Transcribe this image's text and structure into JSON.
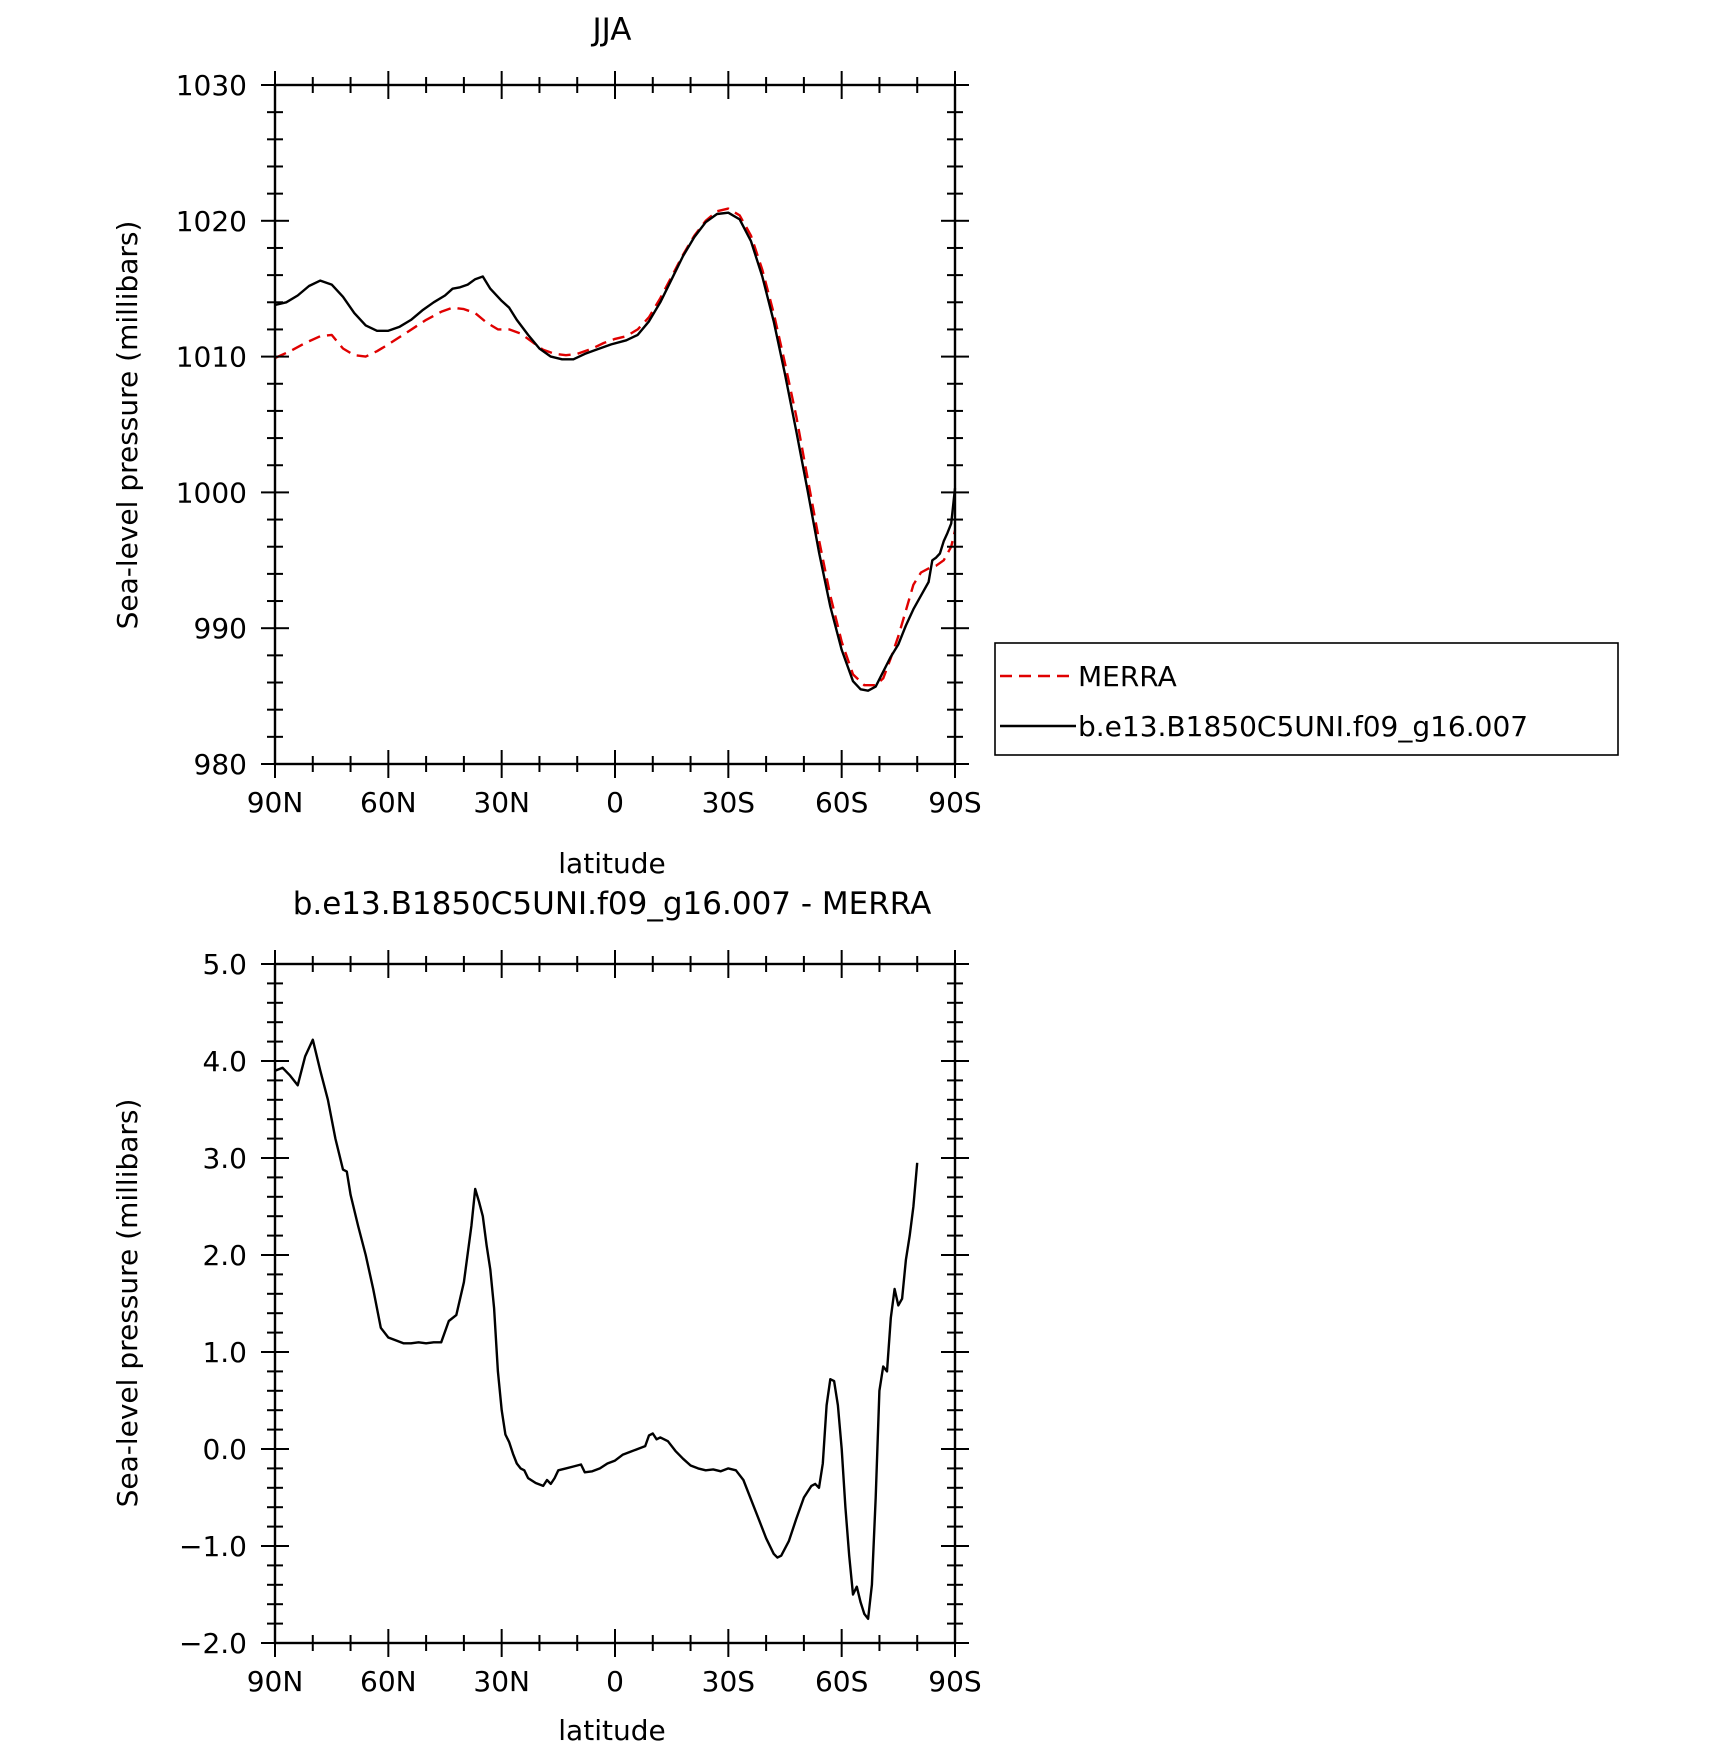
{
  "chart_data": [
    {
      "type": "line",
      "title": "JJA",
      "xlabel": "latitude",
      "ylabel": "Sea-level pressure (millibars)",
      "xlim": [
        90,
        -90
      ],
      "ylim": [
        980,
        1030
      ],
      "x_ticks": [
        {
          "value": 90,
          "label": "90N"
        },
        {
          "value": 60,
          "label": "60N"
        },
        {
          "value": 30,
          "label": "30N"
        },
        {
          "value": 0,
          "label": "0"
        },
        {
          "value": -30,
          "label": "30S"
        },
        {
          "value": -60,
          "label": "60S"
        },
        {
          "value": -90,
          "label": "90S"
        }
      ],
      "y_ticks": [
        {
          "value": 1030,
          "label": "1030"
        },
        {
          "value": 1020,
          "label": "1020"
        },
        {
          "value": 1010,
          "label": "1010"
        },
        {
          "value": 1000,
          "label": "1000"
        },
        {
          "value": 990,
          "label": "990"
        },
        {
          "value": 980,
          "label": "980"
        }
      ],
      "legend": {
        "placement": "right",
        "entries": [
          "MERRA",
          "b.e13.B1850C5UNI.f09_g16.007"
        ]
      },
      "series": [
        {
          "name": "MERRA",
          "color": "#e00000",
          "dash": "dashed",
          "points": [
            [
              90,
              1009.9
            ],
            [
              86,
              1010.4
            ],
            [
              82,
              1011.0
            ],
            [
              78,
              1011.5
            ],
            [
              75,
              1011.6
            ],
            [
              72,
              1010.6
            ],
            [
              69,
              1010.1
            ],
            [
              66,
              1010.0
            ],
            [
              63,
              1010.4
            ],
            [
              60,
              1010.9
            ],
            [
              55,
              1011.8
            ],
            [
              50,
              1012.7
            ],
            [
              46,
              1013.3
            ],
            [
              43,
              1013.6
            ],
            [
              40,
              1013.5
            ],
            [
              37,
              1013.2
            ],
            [
              34,
              1012.5
            ],
            [
              31,
              1012.0
            ],
            [
              28,
              1012.0
            ],
            [
              25,
              1011.7
            ],
            [
              22,
              1011.1
            ],
            [
              19,
              1010.5
            ],
            [
              16,
              1010.2
            ],
            [
              13,
              1010.1
            ],
            [
              10,
              1010.2
            ],
            [
              6,
              1010.6
            ],
            [
              3,
              1011.0
            ],
            [
              0,
              1011.3
            ],
            [
              -3,
              1011.5
            ],
            [
              -6,
              1012.0
            ],
            [
              -9,
              1012.9
            ],
            [
              -12,
              1014.3
            ],
            [
              -15,
              1015.9
            ],
            [
              -18,
              1017.5
            ],
            [
              -21,
              1018.9
            ],
            [
              -24,
              1020.0
            ],
            [
              -27,
              1020.7
            ],
            [
              -30,
              1020.9
            ],
            [
              -33,
              1020.4
            ],
            [
              -36,
              1018.9
            ],
            [
              -39,
              1016.4
            ],
            [
              -42,
              1013.2
            ],
            [
              -45,
              1009.5
            ],
            [
              -48,
              1005.6
            ],
            [
              -51,
              1001.0
            ],
            [
              -54,
              996.5
            ],
            [
              -57,
              992.4
            ],
            [
              -60,
              989.0
            ],
            [
              -63,
              986.6
            ],
            [
              -66,
              985.8
            ],
            [
              -69,
              985.8
            ],
            [
              -71,
              986.3
            ],
            [
              -73,
              987.8
            ],
            [
              -75,
              989.4
            ],
            [
              -77,
              991.3
            ],
            [
              -79,
              993.2
            ],
            [
              -81,
              994.1
            ],
            [
              -83,
              994.4
            ],
            [
              -85,
              994.6
            ],
            [
              -87,
              995.0
            ],
            [
              -89,
              996.0
            ],
            [
              -90,
              997.2
            ]
          ]
        },
        {
          "name": "b.e13.B1850C5UNI.f09_g16.007",
          "color": "#000000",
          "dash": "solid",
          "points": [
            [
              90,
              1013.8
            ],
            [
              87,
              1014.0
            ],
            [
              84,
              1014.5
            ],
            [
              81,
              1015.2
            ],
            [
              78,
              1015.6
            ],
            [
              75,
              1015.3
            ],
            [
              72,
              1014.4
            ],
            [
              69,
              1013.2
            ],
            [
              66,
              1012.3
            ],
            [
              63,
              1011.9
            ],
            [
              60,
              1011.9
            ],
            [
              57,
              1012.2
            ],
            [
              54,
              1012.7
            ],
            [
              51,
              1013.4
            ],
            [
              48,
              1014.0
            ],
            [
              45,
              1014.5
            ],
            [
              43,
              1015.0
            ],
            [
              41,
              1015.1
            ],
            [
              39,
              1015.3
            ],
            [
              37,
              1015.7
            ],
            [
              35,
              1015.9
            ],
            [
              33,
              1015.0
            ],
            [
              30,
              1014.1
            ],
            [
              28,
              1013.6
            ],
            [
              26,
              1012.7
            ],
            [
              23,
              1011.6
            ],
            [
              20,
              1010.6
            ],
            [
              17,
              1010.0
            ],
            [
              14,
              1009.8
            ],
            [
              11,
              1009.8
            ],
            [
              8,
              1010.2
            ],
            [
              5,
              1010.5
            ],
            [
              1,
              1010.9
            ],
            [
              -3,
              1011.2
            ],
            [
              -6,
              1011.6
            ],
            [
              -9,
              1012.6
            ],
            [
              -12,
              1014.0
            ],
            [
              -15,
              1015.7
            ],
            [
              -18,
              1017.4
            ],
            [
              -21,
              1018.8
            ],
            [
              -24,
              1019.9
            ],
            [
              -27,
              1020.5
            ],
            [
              -30,
              1020.6
            ],
            [
              -33,
              1020.1
            ],
            [
              -36,
              1018.5
            ],
            [
              -39,
              1015.9
            ],
            [
              -42,
              1012.6
            ],
            [
              -45,
              1008.7
            ],
            [
              -48,
              1004.5
            ],
            [
              -51,
              1000.1
            ],
            [
              -54,
              995.6
            ],
            [
              -57,
              991.6
            ],
            [
              -60,
              988.4
            ],
            [
              -63,
              986.1
            ],
            [
              -65,
              985.5
            ],
            [
              -67,
              985.4
            ],
            [
              -69,
              985.7
            ],
            [
              -71,
              986.8
            ],
            [
              -73,
              987.9
            ],
            [
              -75,
              988.8
            ],
            [
              -77,
              990.2
            ],
            [
              -79,
              991.4
            ],
            [
              -81,
              992.4
            ],
            [
              -83,
              993.4
            ],
            [
              -84,
              995.0
            ],
            [
              -85,
              995.2
            ],
            [
              -86,
              995.5
            ],
            [
              -87,
              996.4
            ],
            [
              -88,
              997.0
            ],
            [
              -89,
              997.7
            ],
            [
              -90,
              1000.3
            ]
          ]
        }
      ]
    },
    {
      "type": "line",
      "title": "b.e13.B1850C5UNI.f09_g16.007 - MERRA",
      "xlabel": "latitude",
      "ylabel": "Sea-level pressure (millibars)",
      "xlim": [
        90,
        -90
      ],
      "ylim": [
        -2.0,
        5.0
      ],
      "x_ticks": [
        {
          "value": 90,
          "label": "90N"
        },
        {
          "value": 60,
          "label": "60N"
        },
        {
          "value": 30,
          "label": "30N"
        },
        {
          "value": 0,
          "label": "0"
        },
        {
          "value": -30,
          "label": "30S"
        },
        {
          "value": -60,
          "label": "60S"
        },
        {
          "value": -90,
          "label": "90S"
        }
      ],
      "y_ticks": [
        {
          "value": 5.0,
          "label": "5.0"
        },
        {
          "value": 4.0,
          "label": "4.0"
        },
        {
          "value": 3.0,
          "label": "3.0"
        },
        {
          "value": 2.0,
          "label": "2.0"
        },
        {
          "value": 1.0,
          "label": "1.0"
        },
        {
          "value": 0.0,
          "label": "0.0"
        },
        {
          "value": -1.0,
          "label": "−1.0"
        },
        {
          "value": -2.0,
          "label": "−2.0"
        }
      ],
      "series": [
        {
          "color": "#000000",
          "dash": "solid",
          "points": [
            [
              90,
              3.9
            ],
            [
              88,
              3.93
            ],
            [
              86,
              3.85
            ],
            [
              84,
              3.75
            ],
            [
              82,
              4.05
            ],
            [
              80,
              4.22
            ],
            [
              78,
              3.9
            ],
            [
              76,
              3.6
            ],
            [
              74,
              3.2
            ],
            [
              72,
              2.88
            ],
            [
              71,
              2.86
            ],
            [
              70,
              2.62
            ],
            [
              68,
              2.3
            ],
            [
              66,
              2.0
            ],
            [
              64,
              1.65
            ],
            [
              62,
              1.25
            ],
            [
              60,
              1.15
            ],
            [
              58,
              1.12
            ],
            [
              56,
              1.09
            ],
            [
              54,
              1.09
            ],
            [
              52,
              1.1
            ],
            [
              50,
              1.09
            ],
            [
              48,
              1.1
            ],
            [
              46,
              1.1
            ],
            [
              44,
              1.32
            ],
            [
              42,
              1.38
            ],
            [
              40,
              1.72
            ],
            [
              38,
              2.3
            ],
            [
              37,
              2.68
            ],
            [
              36,
              2.55
            ],
            [
              35,
              2.4
            ],
            [
              34,
              2.1
            ],
            [
              33,
              1.85
            ],
            [
              32,
              1.45
            ],
            [
              31,
              0.8
            ],
            [
              30,
              0.4
            ],
            [
              29,
              0.15
            ],
            [
              28,
              0.07
            ],
            [
              27,
              -0.05
            ],
            [
              26,
              -0.15
            ],
            [
              25,
              -0.2
            ],
            [
              24,
              -0.22
            ],
            [
              23,
              -0.3
            ],
            [
              21,
              -0.35
            ],
            [
              19,
              -0.38
            ],
            [
              18,
              -0.32
            ],
            [
              17,
              -0.36
            ],
            [
              16,
              -0.3
            ],
            [
              15,
              -0.22
            ],
            [
              13,
              -0.2
            ],
            [
              11,
              -0.18
            ],
            [
              9,
              -0.16
            ],
            [
              8,
              -0.24
            ],
            [
              6,
              -0.23
            ],
            [
              4,
              -0.2
            ],
            [
              2,
              -0.15
            ],
            [
              0,
              -0.12
            ],
            [
              -2,
              -0.06
            ],
            [
              -4,
              -0.03
            ],
            [
              -6,
              0.0
            ],
            [
              -8,
              0.03
            ],
            [
              -9,
              0.14
            ],
            [
              -10,
              0.16
            ],
            [
              -11,
              0.1
            ],
            [
              -12,
              0.12
            ],
            [
              -14,
              0.08
            ],
            [
              -16,
              -0.02
            ],
            [
              -18,
              -0.1
            ],
            [
              -20,
              -0.17
            ],
            [
              -22,
              -0.2
            ],
            [
              -24,
              -0.22
            ],
            [
              -26,
              -0.21
            ],
            [
              -28,
              -0.23
            ],
            [
              -30,
              -0.2
            ],
            [
              -32,
              -0.22
            ],
            [
              -34,
              -0.32
            ],
            [
              -36,
              -0.52
            ],
            [
              -38,
              -0.72
            ],
            [
              -40,
              -0.92
            ],
            [
              -42,
              -1.08
            ],
            [
              -43,
              -1.12
            ],
            [
              -44,
              -1.1
            ],
            [
              -46,
              -0.95
            ],
            [
              -48,
              -0.72
            ],
            [
              -50,
              -0.5
            ],
            [
              -52,
              -0.38
            ],
            [
              -53,
              -0.36
            ],
            [
              -54,
              -0.4
            ],
            [
              -55,
              -0.15
            ],
            [
              -56,
              0.45
            ],
            [
              -57,
              0.72
            ],
            [
              -58,
              0.7
            ],
            [
              -59,
              0.45
            ],
            [
              -60,
              0.0
            ],
            [
              -61,
              -0.6
            ],
            [
              -62,
              -1.1
            ],
            [
              -63,
              -1.5
            ],
            [
              -64,
              -1.42
            ],
            [
              -65,
              -1.58
            ],
            [
              -66,
              -1.7
            ],
            [
              -67,
              -1.75
            ],
            [
              -68,
              -1.4
            ],
            [
              -69,
              -0.5
            ],
            [
              -70,
              0.6
            ],
            [
              -71,
              0.85
            ],
            [
              -72,
              0.8
            ],
            [
              -73,
              1.35
            ],
            [
              -74,
              1.65
            ],
            [
              -75,
              1.48
            ],
            [
              -76,
              1.55
            ],
            [
              -77,
              1.95
            ],
            [
              -78,
              2.2
            ],
            [
              -79,
              2.5
            ],
            [
              -80,
              2.95
            ]
          ]
        }
      ]
    }
  ]
}
